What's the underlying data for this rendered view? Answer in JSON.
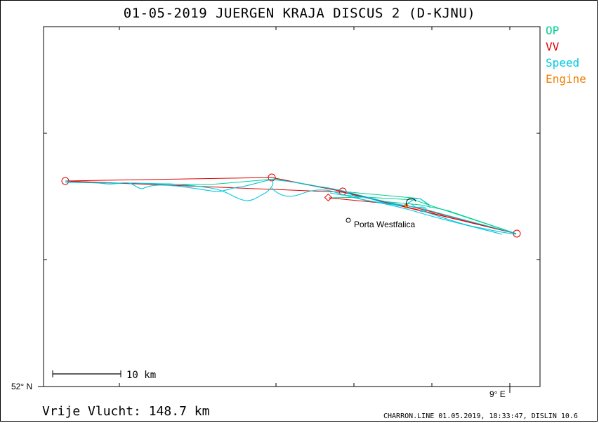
{
  "title": "01-05-2019   JUERGEN KRAJA   DISCUS 2 (D-KJNU)",
  "legend": [
    {
      "label": "OP",
      "color": "#00d090"
    },
    {
      "label": "VV",
      "color": "#e00000"
    },
    {
      "label": "Speed",
      "color": "#00c8e0"
    },
    {
      "label": "Engine",
      "color": "#f08000"
    }
  ],
  "axes": {
    "lat_label": "52° N",
    "lon_label": "9° E"
  },
  "scale_bar": {
    "label": "10 km"
  },
  "place": {
    "name": "Porta Westfalica"
  },
  "distance": "Vrije Vlucht:  148.7 km",
  "credit": "CHARRON.LINE 01.05.2019, 18:33:47, DISLIN 10.6",
  "colors": {
    "op": "#00d090",
    "vv": "#e00000",
    "speed": "#00c8e0",
    "engine": "#f08000",
    "frame": "#000000"
  }
}
